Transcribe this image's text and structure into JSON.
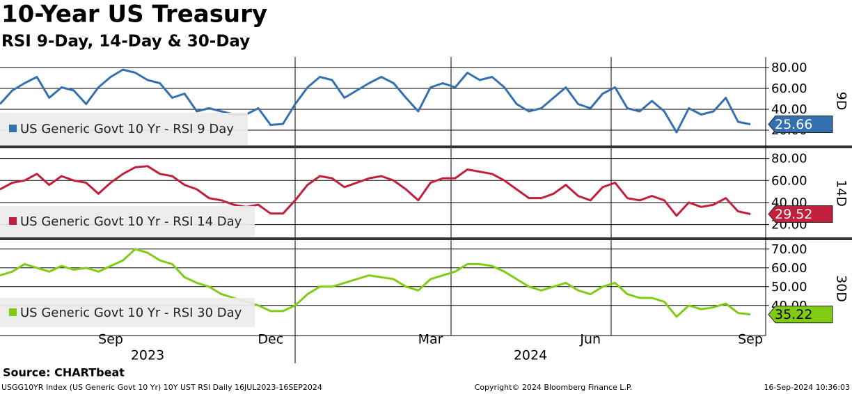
{
  "header": {
    "title": "10-Year US Treasury",
    "subtitle": "RSI 9-Day, 14-Day & 30-Day"
  },
  "chart_data": [
    {
      "type": "line",
      "panel_label": "9D",
      "grid": true,
      "ylim": [
        6,
        90
      ],
      "yticks": [
        {
          "value": 20,
          "label": "20.00"
        },
        {
          "value": 40,
          "label": "40.00"
        },
        {
          "value": 60,
          "label": "60.00"
        },
        {
          "value": 80,
          "label": "80.00"
        }
      ],
      "series": [
        {
          "name": "US Generic Govt 10 Yr - RSI 9 Day",
          "color": "#3470b0",
          "value_label_color": "#ffffff",
          "values": [
            45,
            58,
            65,
            71,
            51,
            61,
            58,
            45,
            61,
            71,
            78,
            75,
            68,
            65,
            51,
            55,
            38,
            41,
            38,
            35,
            35,
            41,
            25,
            26,
            45,
            61,
            71,
            68,
            51,
            58,
            65,
            71,
            65,
            51,
            38,
            61,
            65,
            61,
            75,
            68,
            71,
            61,
            45,
            38,
            41,
            51,
            61,
            45,
            41,
            55,
            61,
            41,
            38,
            48,
            38,
            18,
            41,
            35,
            38,
            51,
            28,
            25.66
          ]
        }
      ]
    },
    {
      "type": "line",
      "panel_label": "14D",
      "grid": true,
      "ylim": [
        9,
        88
      ],
      "yticks": [
        {
          "value": 20,
          "label": "20.00"
        },
        {
          "value": 40,
          "label": "40.00"
        },
        {
          "value": 60,
          "label": "60.00"
        },
        {
          "value": 80,
          "label": "80.00"
        }
      ],
      "series": [
        {
          "name": "US Generic Govt 10 Yr - RSI 14 Day",
          "color": "#c11f3b",
          "value_label_color": "#ffffff",
          "values": [
            52,
            58,
            60,
            66,
            56,
            64,
            60,
            58,
            48,
            58,
            66,
            72,
            73,
            66,
            64,
            56,
            52,
            44,
            42,
            38,
            36,
            38,
            30,
            30,
            42,
            56,
            64,
            62,
            54,
            58,
            62,
            64,
            60,
            52,
            42,
            58,
            62,
            62,
            70,
            68,
            66,
            60,
            52,
            44,
            44,
            48,
            56,
            46,
            42,
            54,
            58,
            44,
            42,
            46,
            42,
            28,
            40,
            36,
            38,
            44,
            32,
            29.52
          ]
        }
      ]
    },
    {
      "type": "line",
      "panel_label": "30D",
      "grid": true,
      "ylim": [
        24,
        74
      ],
      "yticks": [
        {
          "value": 40,
          "label": "40.00"
        },
        {
          "value": 50,
          "label": "50.00"
        },
        {
          "value": 60,
          "label": "60.00"
        },
        {
          "value": 70,
          "label": "70.00"
        }
      ],
      "categories": [
        null,
        null,
        null,
        null,
        null,
        null,
        null,
        null,
        null,
        "Sep",
        null,
        null,
        null,
        null,
        null,
        null,
        null,
        null,
        null,
        null,
        null,
        null,
        "Dec",
        null,
        null,
        null,
        null,
        null,
        null,
        null,
        null,
        null,
        null,
        null,
        null,
        "Mar",
        null,
        null,
        null,
        null,
        null,
        null,
        null,
        null,
        null,
        null,
        null,
        null,
        "Jun",
        null,
        null,
        null,
        null,
        null,
        null,
        null,
        null,
        null,
        null,
        null,
        null,
        "Sep"
      ],
      "year_labels": [
        "2023",
        "2024"
      ],
      "series": [
        {
          "name": "US Generic Govt 10 Yr - RSI 30 Day",
          "color": "#80cc14",
          "value_label_color": "#000000",
          "values": [
            56,
            58,
            62,
            60,
            58,
            61,
            59,
            60,
            58,
            61,
            64,
            70,
            68,
            64,
            62,
            55,
            52,
            50,
            46,
            44,
            42,
            40,
            37,
            37,
            40,
            46,
            50,
            50,
            52,
            54,
            56,
            55,
            54,
            50,
            48,
            54,
            56,
            58,
            62,
            62,
            61,
            58,
            54,
            50,
            48,
            50,
            52,
            48,
            46,
            50,
            52,
            46,
            44,
            44,
            42,
            34,
            40,
            38,
            39,
            41,
            36,
            35.22
          ]
        }
      ]
    }
  ],
  "source": "Source: CHARTbeat",
  "footer": {
    "left": "USGG10YR Index (US Generic Govt 10 Yr) 10Y UST RSI  Daily 16JUL2023-16SEP2024",
    "center": "Copyright© 2024 Bloomberg Finance L.P.",
    "right": "16-Sep-2024 10:36:03"
  }
}
